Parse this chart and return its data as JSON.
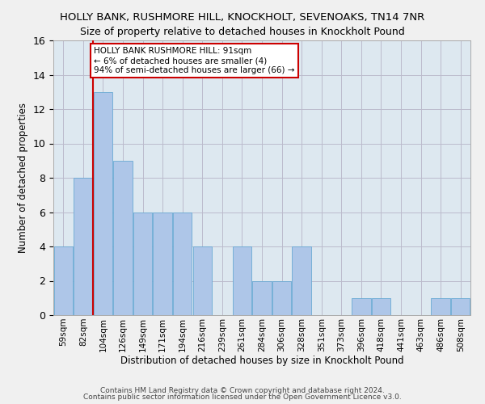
{
  "title1": "HOLLY BANK, RUSHMORE HILL, KNOCKHOLT, SEVENOAKS, TN14 7NR",
  "title2": "Size of property relative to detached houses in Knockholt Pound",
  "xlabel": "Distribution of detached houses by size in Knockholt Pound",
  "ylabel": "Number of detached properties",
  "categories": [
    "59sqm",
    "82sqm",
    "104sqm",
    "126sqm",
    "149sqm",
    "171sqm",
    "194sqm",
    "216sqm",
    "239sqm",
    "261sqm",
    "284sqm",
    "306sqm",
    "328sqm",
    "351sqm",
    "373sqm",
    "396sqm",
    "418sqm",
    "441sqm",
    "463sqm",
    "486sqm",
    "508sqm"
  ],
  "values": [
    4,
    8,
    13,
    9,
    6,
    6,
    6,
    4,
    0,
    4,
    2,
    2,
    4,
    0,
    0,
    1,
    1,
    0,
    0,
    1,
    1
  ],
  "bar_color": "#aec6e8",
  "bar_edge_color": "#6aaad4",
  "annotation_text": "HOLLY BANK RUSHMORE HILL: 91sqm\n← 6% of detached houses are smaller (4)\n94% of semi-detached houses are larger (66) →",
  "annotation_box_color": "#ffffff",
  "annotation_box_edge": "#cc0000",
  "ylim": [
    0,
    16
  ],
  "yticks": [
    0,
    2,
    4,
    6,
    8,
    10,
    12,
    14,
    16
  ],
  "grid_color": "#bbbbcc",
  "background_color": "#dde8f0",
  "footer1": "Contains HM Land Registry data © Crown copyright and database right 2024.",
  "footer2": "Contains public sector information licensed under the Open Government Licence v3.0.",
  "title1_fontsize": 9.5,
  "title2_fontsize": 9,
  "red_line_color": "#cc0000",
  "red_line_x": 1.5,
  "fig_bg": "#f0f0f0"
}
